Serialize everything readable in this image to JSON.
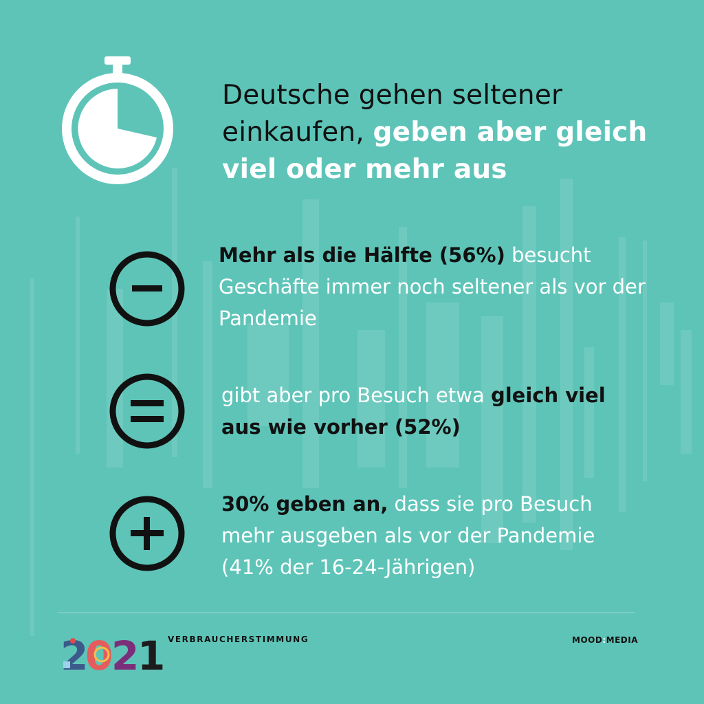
{
  "headline": {
    "part1": "Deutsche gehen seltener einkaufen, ",
    "part2": "geben aber gleich viel oder mehr aus"
  },
  "items": [
    {
      "icon": "minus-circle-icon",
      "bold": "Mehr als die Hälfte (56%)",
      "rest": " besucht Geschäfte immer noch seltener als vor der Pandemie"
    },
    {
      "icon": "equals-circle-icon",
      "rest": "gibt aber pro Besuch etwa ",
      "bold": "gleich viel aus wie vorher (52%)"
    },
    {
      "icon": "plus-circle-icon",
      "bold": "30% geben an,",
      "rest": " dass sie pro Besuch mehr ausgeben als vor der Pandemie (41% der 16-24-Jährigen)"
    }
  ],
  "footer": {
    "label": "VERBRAUCHERSTIMMUNG",
    "brand_left": "MOOD",
    "brand_colon": ":",
    "brand_right": "MEDIA"
  },
  "icons": {
    "top": "stopwatch-icon"
  },
  "colors": {
    "background": "#5ec4b8",
    "accent_dark": "#111111",
    "accent_light": "#ffffff"
  }
}
